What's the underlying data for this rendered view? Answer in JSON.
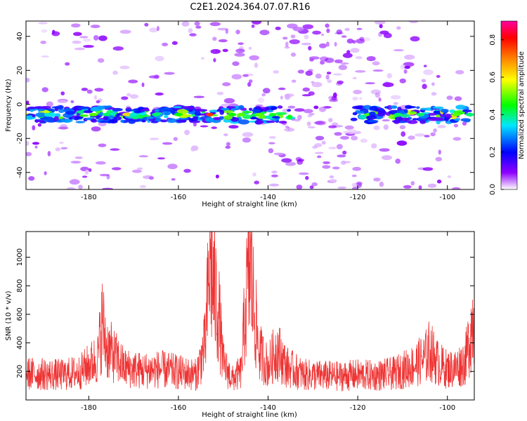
{
  "title": "C2E1.2024.364.07.07.R16",
  "chart_data": [
    {
      "type": "heatmap",
      "xlabel": "Height of straight line (km)",
      "ylabel": "Frequency (Hz)",
      "xlim": [
        -194,
        -94
      ],
      "ylim": [
        -50,
        49
      ],
      "xticks": [
        -180,
        -160,
        -140,
        -120,
        -100
      ],
      "yticks": [
        -40,
        -20,
        0,
        20,
        40
      ],
      "colorbar": {
        "label": "Normalized spectral amplitude",
        "range": [
          0,
          0.9
        ],
        "ticks": [
          0.0,
          0.2,
          0.4,
          0.6,
          0.8
        ],
        "colors": [
          "#ffffff",
          "#8f00ff",
          "#0000ff",
          "#00e6ff",
          "#00ff00",
          "#ffff00",
          "#ff8000",
          "#ff0000",
          "#ff00a0"
        ]
      },
      "band": {
        "center_frequency_hz": -6,
        "gaps_km": [
          [
            -135,
            -121
          ]
        ],
        "peak_height_km": -153,
        "peak_value": 0.85
      }
    },
    {
      "type": "line",
      "xlabel": "Height of straight line (km)",
      "ylabel": "SNR (10 * v/v)",
      "xlim": [
        -194,
        -94
      ],
      "ylim": [
        0,
        1180
      ],
      "xticks": [
        -180,
        -160,
        -140,
        -120,
        -100
      ],
      "yticks": [
        200,
        400,
        600,
        800,
        1000
      ],
      "color": "#ee3333",
      "x": [
        -194,
        -190,
        -186,
        -182,
        -178,
        -177,
        -176,
        -172,
        -168,
        -164,
        -160,
        -156,
        -154,
        -153,
        -152,
        -151,
        -150,
        -148,
        -146,
        -145,
        -144,
        -143,
        -142,
        -140,
        -138,
        -136,
        -132,
        -128,
        -124,
        -120,
        -116,
        -112,
        -108,
        -105,
        -104,
        -102,
        -100,
        -98,
        -96,
        -95,
        -94
      ],
      "y": [
        190,
        185,
        180,
        200,
        300,
        560,
        380,
        230,
        210,
        220,
        200,
        180,
        400,
        1010,
        780,
        620,
        260,
        150,
        200,
        700,
        960,
        620,
        350,
        240,
        370,
        240,
        180,
        175,
        170,
        180,
        175,
        190,
        240,
        300,
        360,
        260,
        220,
        230,
        280,
        450,
        640
      ]
    }
  ]
}
